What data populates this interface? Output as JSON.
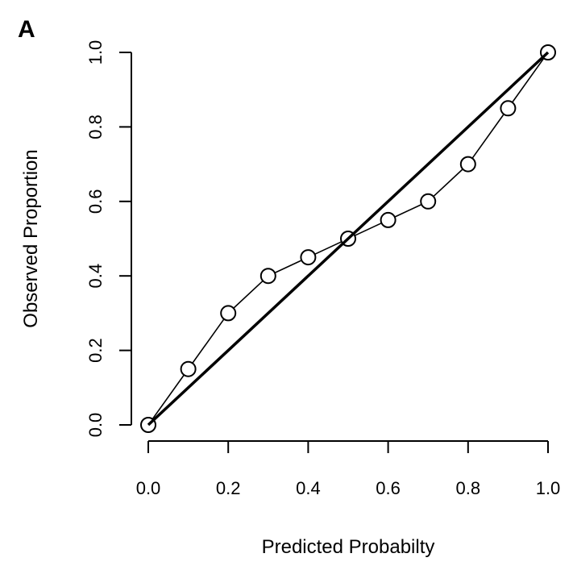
{
  "panel_label": "A",
  "chart_data": {
    "type": "scatter",
    "xlabel": "Predicted Probabilty",
    "ylabel": "Observed Proportion",
    "xlim": [
      0.0,
      1.0
    ],
    "ylim": [
      0.0,
      1.0
    ],
    "x_ticks": [
      "0.0",
      "0.2",
      "0.4",
      "0.6",
      "0.8",
      "1.0"
    ],
    "y_ticks": [
      "0.0",
      "0.2",
      "0.4",
      "0.6",
      "0.8",
      "1.0"
    ],
    "grid": false,
    "series": [
      {
        "style": "line-with-open-circles",
        "x": [
          0.0,
          0.1,
          0.2,
          0.3,
          0.4,
          0.5,
          0.6,
          0.7,
          0.8,
          0.9,
          1.0
        ],
        "y": [
          0.0,
          0.15,
          0.3,
          0.4,
          0.45,
          0.5,
          0.55,
          0.6,
          0.7,
          0.85,
          1.0
        ]
      },
      {
        "style": "thick-reference-line",
        "x": [
          0.0,
          1.0
        ],
        "y": [
          0.0,
          1.0
        ]
      }
    ]
  }
}
